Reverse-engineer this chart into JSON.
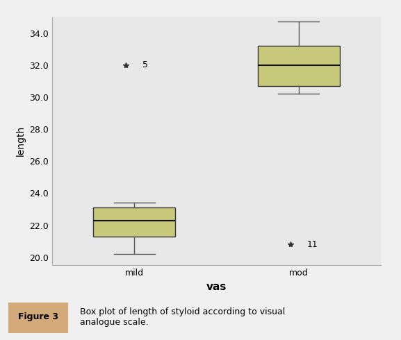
{
  "categories": [
    "mild",
    "mod"
  ],
  "box_color": "#c8c87a",
  "box_edge_color": "#333333",
  "median_color": "#111111",
  "whisker_color": "#555555",
  "flier_marker": "*",
  "flier_color": "#333333",
  "background_color": "#e8e8e8",
  "xlabel": "vas",
  "ylabel": "length",
  "ylim": [
    19.5,
    35.0
  ],
  "yticks": [
    20.0,
    22.0,
    24.0,
    26.0,
    28.0,
    30.0,
    32.0,
    34.0
  ],
  "mild": {
    "q1": 21.3,
    "median": 22.3,
    "q3": 23.1,
    "whisker_low": 20.2,
    "whisker_high": 23.4,
    "fliers_low": [],
    "fliers_high": [
      32.0
    ],
    "flier_labels_high": [
      "5"
    ]
  },
  "mod": {
    "q1": 30.7,
    "median": 32.0,
    "q3": 33.2,
    "whisker_low": 30.2,
    "whisker_high": 34.7,
    "fliers_low": [
      20.8
    ],
    "fliers_high": [],
    "flier_labels_low": [
      "11"
    ]
  },
  "box_width": 0.5,
  "caption_label": "Figure 3",
  "caption_label_bg": "#d4a97a",
  "caption_text": "Box plot of length of styloid according to visual\nanalogue scale.",
  "title_fontsize": 11,
  "axis_fontsize": 10,
  "tick_fontsize": 9
}
